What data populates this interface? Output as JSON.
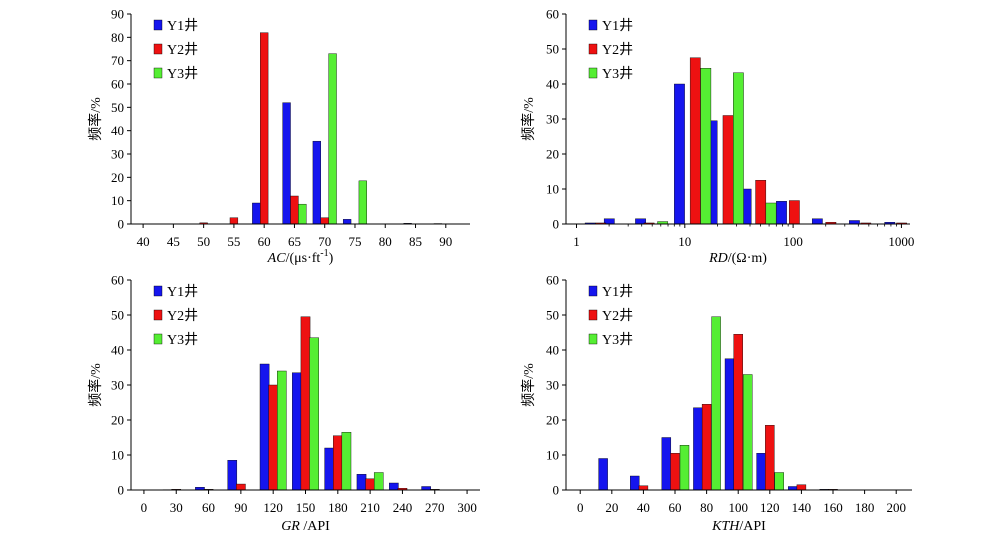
{
  "colors": {
    "Y1": "#1515ee",
    "Y2": "#ee1111",
    "Y3": "#55ee33"
  },
  "chart_data": [
    {
      "id": "ac",
      "type": "bar",
      "xlabel_italic": "AC",
      "xlabel_rest": "/(μs·ft",
      "xlabel_sup": "-1",
      "xlabel_close": ")",
      "ylabel": "频率/%",
      "ylim": [
        0,
        90
      ],
      "yticks": [
        "0",
        "10",
        "20",
        "30",
        "40",
        "50",
        "60",
        "70",
        "80",
        "90"
      ],
      "x_scale": "linear",
      "xlim": [
        38,
        94
      ],
      "xticks": [
        "40",
        "45",
        "50",
        "55",
        "60",
        "65",
        "70",
        "75",
        "80",
        "85",
        "90"
      ],
      "bar_width": 1.3,
      "grid": false,
      "legend_position": "top-left",
      "series": [
        {
          "name": "Y1井",
          "x": [
            58.7,
            63.7,
            68.7,
            73.7,
            83.7,
            88.7
          ],
          "values": [
            9,
            52,
            35.5,
            2,
            0.3,
            0.2
          ]
        },
        {
          "name": "Y2井",
          "x": [
            50,
            55,
            60,
            65,
            70
          ],
          "values": [
            0.5,
            2.7,
            82,
            12,
            2.7
          ]
        },
        {
          "name": "Y3井",
          "x": [
            66.3,
            71.3,
            76.3
          ],
          "values": [
            8.5,
            73,
            18.5
          ]
        }
      ]
    },
    {
      "id": "rd",
      "type": "bar",
      "xlabel_italic": "RD",
      "xlabel_rest": "/(Ω·m)",
      "xlabel_sup": "",
      "xlabel_close": "",
      "ylabel": "频率/%",
      "ylim": [
        0,
        60
      ],
      "yticks": [
        "0",
        "10",
        "20",
        "30",
        "40",
        "50",
        "60"
      ],
      "x_scale": "log",
      "xlim": [
        0.8,
        1200
      ],
      "xticks": [
        "1",
        "10",
        "100",
        "1000"
      ],
      "xtick_values": [
        1,
        10,
        100,
        1000
      ],
      "grid": false,
      "legend_position": "top-left",
      "series": [
        {
          "name": "Y1井",
          "x": [
            1.2,
            1.8,
            3.5,
            8,
            16,
            33,
            70,
            150,
            330,
            700
          ],
          "values": [
            0.3,
            1.5,
            1.5,
            40,
            29.5,
            10,
            6.5,
            1.5,
            1,
            0.5
          ]
        },
        {
          "name": "Y2井",
          "x": [
            1.5,
            4.2,
            11.2,
            22.5,
            45,
            92,
            200,
            420,
            900
          ],
          "values": [
            0.3,
            0.3,
            47.5,
            31,
            12.5,
            6.7,
            0.5,
            0.3,
            0.3
          ]
        },
        {
          "name": "Y3井",
          "x": [
            5.6,
            14,
            28,
            56
          ],
          "values": [
            0.7,
            44.5,
            43.2,
            6
          ]
        }
      ]
    },
    {
      "id": "gr",
      "type": "bar",
      "xlabel_italic": "GR",
      "xlabel_rest": " /API",
      "xlabel_sup": "",
      "xlabel_close": "",
      "ylabel": "频率/%",
      "ylim": [
        0,
        60
      ],
      "yticks": [
        "0",
        "10",
        "20",
        "30",
        "40",
        "50",
        "60"
      ],
      "x_scale": "linear",
      "xlim": [
        -12,
        312
      ],
      "xticks": [
        "0",
        "30",
        "60",
        "90",
        "120",
        "150",
        "180",
        "210",
        "240",
        "270",
        "300"
      ],
      "bar_width": 8.5,
      "grid": false,
      "legend_position": "top-left",
      "series": [
        {
          "name": "Y1井",
          "x": [
            22,
            52,
            82,
            112,
            142,
            172,
            202,
            232,
            262
          ],
          "values": [
            0.1,
            0.8,
            8.5,
            36,
            33.5,
            12,
            4.5,
            2,
            1
          ]
        },
        {
          "name": "Y2井",
          "x": [
            30,
            60,
            90,
            120,
            150,
            180,
            210,
            240,
            270
          ],
          "values": [
            0.2,
            0.2,
            1.7,
            30,
            49.5,
            15.5,
            3.2,
            0.5,
            0.2
          ]
        },
        {
          "name": "Y3井",
          "x": [
            128,
            158,
            188,
            218
          ],
          "values": [
            34,
            43.5,
            16.5,
            5
          ]
        }
      ]
    },
    {
      "id": "kth",
      "type": "bar",
      "xlabel_italic": "KTH",
      "xlabel_rest": "/API",
      "xlabel_sup": "",
      "xlabel_close": "",
      "ylabel": "频率/%",
      "ylim": [
        0,
        60
      ],
      "yticks": [
        "0",
        "10",
        "20",
        "30",
        "40",
        "50",
        "60"
      ],
      "x_scale": "linear",
      "xlim": [
        -9,
        210
      ],
      "xticks": [
        "0",
        "20",
        "40",
        "60",
        "80",
        "100",
        "120",
        "140",
        "160",
        "180",
        "200"
      ],
      "bar_width": 5.7,
      "grid": false,
      "legend_position": "top-left",
      "series": [
        {
          "name": "Y1井",
          "x": [
            14.5,
            34.5,
            54.5,
            74.5,
            94.5,
            114.5,
            134.5,
            154.5
          ],
          "values": [
            9,
            4,
            15,
            23.5,
            37.5,
            10.5,
            1,
            0.2
          ]
        },
        {
          "name": "Y2井",
          "x": [
            40,
            60,
            80,
            100,
            120,
            140,
            160
          ],
          "values": [
            1.2,
            10.5,
            24.5,
            44.5,
            18.5,
            1.5,
            0.2
          ]
        },
        {
          "name": "Y3井",
          "x": [
            66,
            86,
            106,
            126
          ],
          "values": [
            12.8,
            49.5,
            33,
            5
          ]
        }
      ]
    }
  ]
}
